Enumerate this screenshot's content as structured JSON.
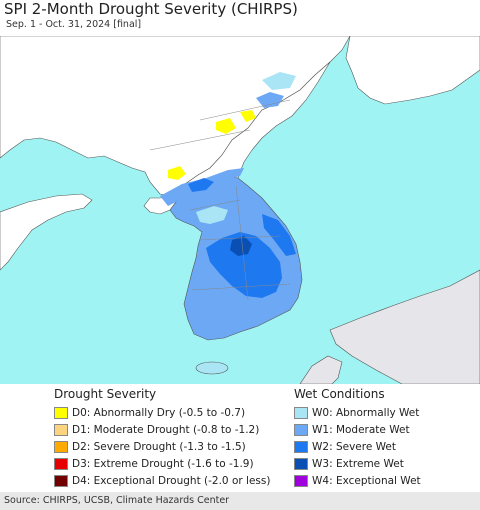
{
  "header": {
    "title": "SPI 2-Month Drought Severity (CHIRPS)",
    "subtitle": "Sep. 1 - Oct. 31, 2024 [final]"
  },
  "colors": {
    "sea": "#9ff3f3",
    "land_neutral": "#ffffff",
    "foreign_land": "#e6e6ea",
    "border": "#555555"
  },
  "legend": {
    "drought_title": "Drought Severity",
    "drought": [
      {
        "label": "D0: Abnormally Dry (-0.5 to -0.7)",
        "color": "#ffff00"
      },
      {
        "label": "D1: Moderate Drought (-0.8 to -1.2)",
        "color": "#fcd37f"
      },
      {
        "label": "D2: Severe Drought (-1.3 to -1.5)",
        "color": "#ffaa00"
      },
      {
        "label": "D3: Extreme Drought (-1.6 to -1.9)",
        "color": "#e60000"
      },
      {
        "label": "D4: Exceptional Drought (-2.0 or less)",
        "color": "#730000"
      }
    ],
    "wet_title": "Wet Conditions",
    "wet": [
      {
        "label": "W0: Abnormally Wet",
        "color": "#aae5f5"
      },
      {
        "label": "W1: Moderate Wet",
        "color": "#6da8f5"
      },
      {
        "label": "W2: Severe Wet",
        "color": "#1e78f0"
      },
      {
        "label": "W3: Extreme Wet",
        "color": "#0a50b4"
      },
      {
        "label": "W4: Exceptional Wet",
        "color": "#a000dc"
      }
    ]
  },
  "footer": {
    "source": "Source: CHIRPS, UCSB, Climate Hazards Center"
  }
}
